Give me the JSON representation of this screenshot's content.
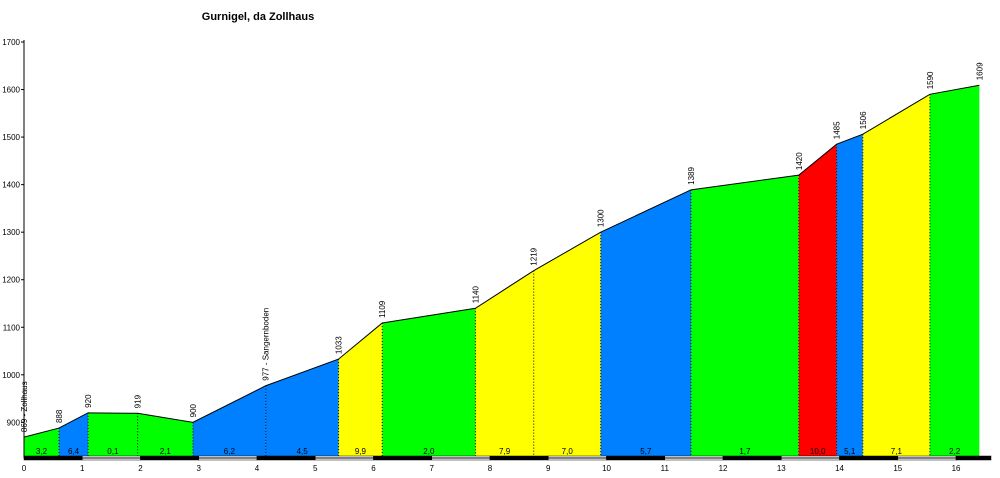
{
  "chart_data": {
    "type": "area",
    "title": "Gurnigel, da Zollhaus",
    "xlabel": "",
    "ylabel": "",
    "xlim": [
      0,
      16.6
    ],
    "ylim": [
      825,
      1700
    ],
    "y_ticks": [
      900,
      1000,
      1100,
      1200,
      1300,
      1400,
      1500,
      1600,
      1700
    ],
    "x_ticks": [
      0,
      1,
      2,
      3,
      4,
      5,
      6,
      7,
      8,
      9,
      10,
      11,
      12,
      13,
      14,
      15,
      16
    ],
    "profile": [
      {
        "km": 0.0,
        "alt": 869,
        "label": "869 - Zollhaus"
      },
      {
        "km": 0.6,
        "alt": 888,
        "label": "888"
      },
      {
        "km": 1.1,
        "alt": 920,
        "label": "920"
      },
      {
        "km": 1.95,
        "alt": 919,
        "label": "919"
      },
      {
        "km": 2.9,
        "alt": 900,
        "label": "900"
      },
      {
        "km": 4.15,
        "alt": 977,
        "label": "977 - Sangernboden"
      },
      {
        "km": 5.4,
        "alt": 1033,
        "label": "1033"
      },
      {
        "km": 6.15,
        "alt": 1109,
        "label": "1109"
      },
      {
        "km": 7.75,
        "alt": 1140,
        "label": "1140"
      },
      {
        "km": 8.75,
        "alt": 1219,
        "label": "1219"
      },
      {
        "km": 9.9,
        "alt": 1300,
        "label": "1300"
      },
      {
        "km": 11.45,
        "alt": 1389,
        "label": "1389"
      },
      {
        "km": 13.3,
        "alt": 1420,
        "label": "1420"
      },
      {
        "km": 13.95,
        "alt": 1485,
        "label": "1485"
      },
      {
        "km": 14.4,
        "alt": 1506,
        "label": "1506"
      },
      {
        "km": 15.55,
        "alt": 1590,
        "label": "1590"
      },
      {
        "km": 16.4,
        "alt": 1609,
        "label": "1609"
      }
    ],
    "segments": [
      {
        "gradient": "3,2",
        "color": "#00ff00"
      },
      {
        "gradient": "6,4",
        "color": "#0080ff"
      },
      {
        "gradient": "0,1",
        "color": "#00ff00"
      },
      {
        "gradient": "2,1",
        "color": "#00ff00"
      },
      {
        "gradient": "6,2",
        "color": "#0080ff"
      },
      {
        "gradient": "4,5",
        "color": "#0080ff"
      },
      {
        "gradient": "9,9",
        "color": "#ffff00"
      },
      {
        "gradient": "2,0",
        "color": "#00ff00"
      },
      {
        "gradient": "7,9",
        "color": "#ffff00"
      },
      {
        "gradient": "7,0",
        "color": "#ffff00"
      },
      {
        "gradient": "5,7",
        "color": "#0080ff"
      },
      {
        "gradient": "1,7",
        "color": "#00ff00"
      },
      {
        "gradient": "10,0",
        "color": "#ff0000"
      },
      {
        "gradient": "5,1",
        "color": "#0080ff"
      },
      {
        "gradient": "7,1",
        "color": "#ffff00"
      },
      {
        "gradient": "2,2",
        "color": "#00ff00"
      }
    ],
    "grid": false,
    "legend": "none"
  }
}
